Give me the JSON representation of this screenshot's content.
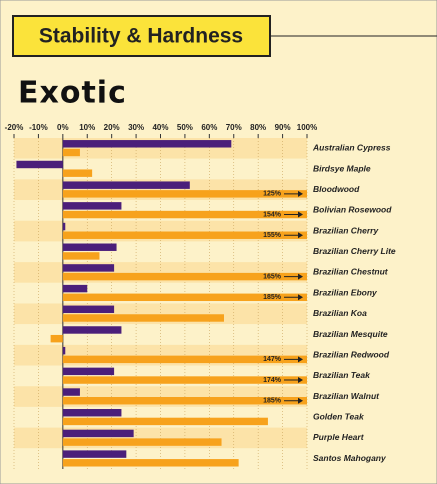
{
  "chart_data": {
    "type": "bar",
    "orientation": "horizontal",
    "title": "Stability & Hardness",
    "subtitle": "Exotic",
    "categories": [
      "Australian Cypress",
      "Birdsye Maple",
      "Bloodwood",
      "Bolivian Rosewood",
      "Brazilian Cherry",
      "Brazilian Cherry Lite",
      "Brazilian Chestnut",
      "Brazilian Ebony",
      "Brazilian Koa",
      "Brazilian Mesquite",
      "Brazilian Redwood",
      "Brazilian Teak",
      "Brazilian Walnut",
      "Golden Teak",
      "Purple Heart",
      "Santos Mahogany"
    ],
    "series": [
      {
        "color": "#4b1f7a",
        "values": [
          69,
          -19,
          52,
          24,
          1,
          22,
          21,
          10,
          21,
          24,
          1,
          21,
          7,
          24,
          29,
          26
        ]
      },
      {
        "color": "#f7a21c",
        "values": [
          7,
          12,
          125,
          154,
          155,
          15,
          165,
          185,
          66,
          -5,
          147,
          174,
          185,
          84,
          65,
          72
        ],
        "value_labels": [
          null,
          null,
          "125%",
          "154%",
          "155%",
          null,
          "165%",
          "185%",
          null,
          null,
          "147%",
          "174%",
          "185%",
          null,
          null,
          null
        ]
      }
    ],
    "xlim": [
      -20,
      100
    ],
    "xticks": [
      {
        "value": -20,
        "label": "-20%"
      },
      {
        "value": -10,
        "label": "-10%"
      },
      {
        "value": 0,
        "label": "0%"
      },
      {
        "value": 10,
        "label": "10%"
      },
      {
        "value": 20,
        "label": "20%"
      },
      {
        "value": 30,
        "label": "30%"
      },
      {
        "value": 40,
        "label": "40%"
      },
      {
        "value": 50,
        "label": "50%"
      },
      {
        "value": 60,
        "label": "60%"
      },
      {
        "value": 70,
        "label": "70%"
      },
      {
        "value": 80,
        "label": "80%"
      },
      {
        "value": 90,
        "label": "90%"
      },
      {
        "value": 100,
        "label": "100%"
      }
    ],
    "grid": true
  }
}
